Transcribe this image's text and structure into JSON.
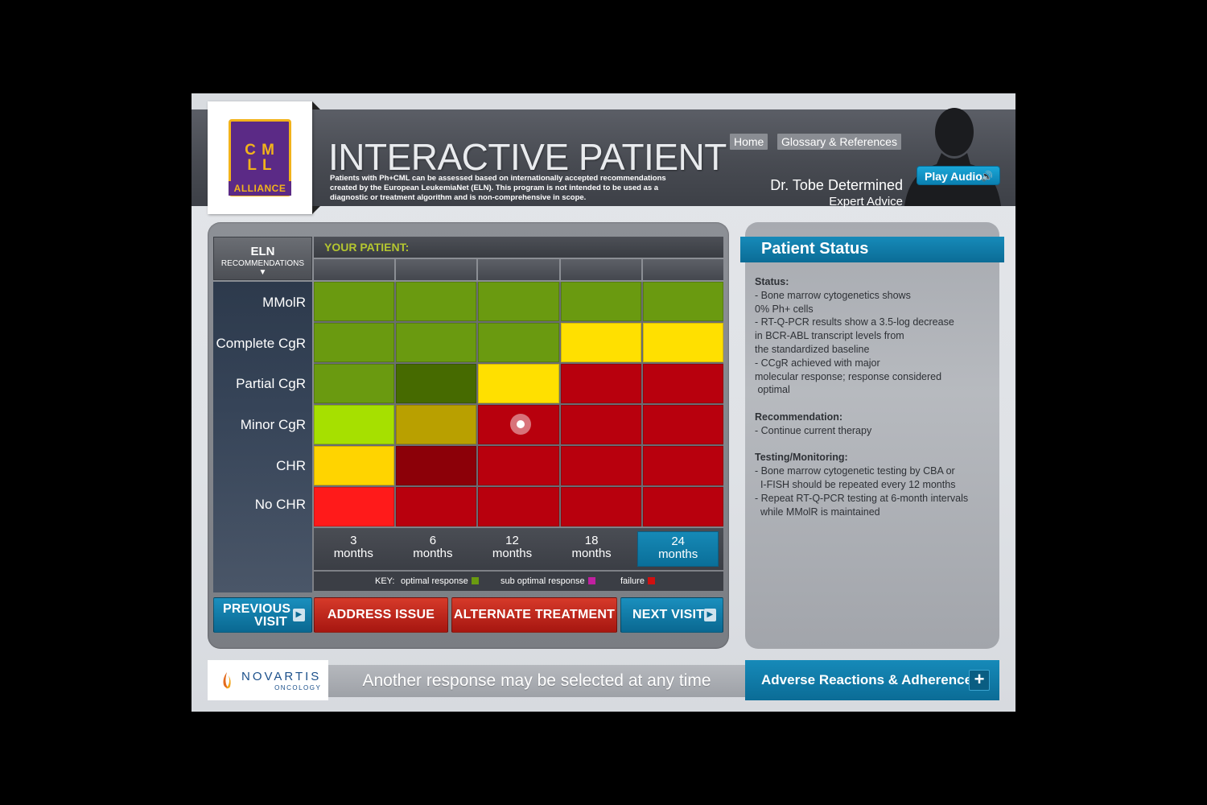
{
  "header": {
    "title": "INTERACTIVE PATIENT",
    "disclaimer": "Patients with Ph+CML can be assessed based on internationally accepted recommendations created by the European LeukemiaNet (ELN). This program is not intended to be used as a diagnostic or treatment algorithm and is non-comprehensive in scope.",
    "nav": {
      "home": "Home",
      "glossary": "Glossary & References"
    },
    "expert": {
      "name": "Dr. Tobe Determined",
      "role": "Expert Advice"
    },
    "play_audio": "Play Audio"
  },
  "logo": {
    "letters_top": "C M",
    "letters_bottom": "L L",
    "alliance": "ALLIANCE"
  },
  "eln": {
    "title": "ELN",
    "subtitle": "RECOMMENDATIONS",
    "arrow": "▼",
    "rows": [
      "MMolR",
      "Complete CgR",
      "Partial CgR",
      "Minor CgR",
      "CHR",
      "No CHR"
    ]
  },
  "your_patient": "YOUR PATIENT:",
  "grid": {
    "colors": [
      [
        "#6a9a10",
        "#6a9a10",
        "#6a9a10",
        "#6a9a10",
        "#6a9a10"
      ],
      [
        "#6a9a10",
        "#6a9a10",
        "#6a9a10",
        "#ffe000",
        "#ffe000"
      ],
      [
        "#6a9a10",
        "#466a00",
        "#ffe000",
        "#b8000d",
        "#b8000d"
      ],
      [
        "#a6e000",
        "#b9a000",
        "#b8000d",
        "#b8000d",
        "#b8000d"
      ],
      [
        "#ffd400",
        "#8c0008",
        "#b8000d",
        "#b8000d",
        "#b8000d"
      ],
      [
        "#ff1a1a",
        "#b8000d",
        "#b8000d",
        "#b8000d",
        "#b8000d"
      ]
    ]
  },
  "timepoints": [
    {
      "num": "3",
      "unit": "months",
      "active": false
    },
    {
      "num": "6",
      "unit": "months",
      "active": false
    },
    {
      "num": "12",
      "unit": "months",
      "active": false
    },
    {
      "num": "18",
      "unit": "months",
      "active": false
    },
    {
      "num": "24",
      "unit": "months",
      "active": true
    }
  ],
  "key": {
    "label": "KEY:",
    "optimal": "optimal response",
    "optimal_color": "#6a9a10",
    "sub": "sub optimal response",
    "sub_color": "#c020a0",
    "failure": "failure",
    "failure_color": "#d01010"
  },
  "actions": {
    "previous_line1": "PREVIOUS",
    "previous_line2": "VISIT",
    "address": "ADDRESS ISSUE",
    "alternate": "ALTERNATE TREATMENT",
    "next": "NEXT VISIT"
  },
  "status": {
    "title": "Patient Status",
    "status_head": "Status:",
    "status_lines": [
      "- Bone marrow cytogenetics shows",
      "0% Ph+ cells",
      "- RT-Q-PCR results show a 3.5-log decrease",
      "in BCR-ABL transcript levels from",
      "the standardized baseline",
      "- CCgR achieved with major",
      "molecular response; response considered",
      " optimal"
    ],
    "rec_head": "Recommendation:",
    "rec_lines": [
      "- Continue current therapy"
    ],
    "test_head": "Testing/Monitoring:",
    "test_lines": [
      "- Bone marrow cytogenetic testing by CBA or",
      "  I-FISH should be repeated every 12 months",
      "- Repeat RT-Q-PCR testing at 6-month intervals",
      "  while MMolR is maintained"
    ]
  },
  "footer": {
    "novartis": "NOVARTIS",
    "novartis_sub": "ONCOLOGY",
    "message": "Another response may be selected at any time",
    "adverse": "Adverse Reactions & Adherence",
    "plus": "+"
  }
}
